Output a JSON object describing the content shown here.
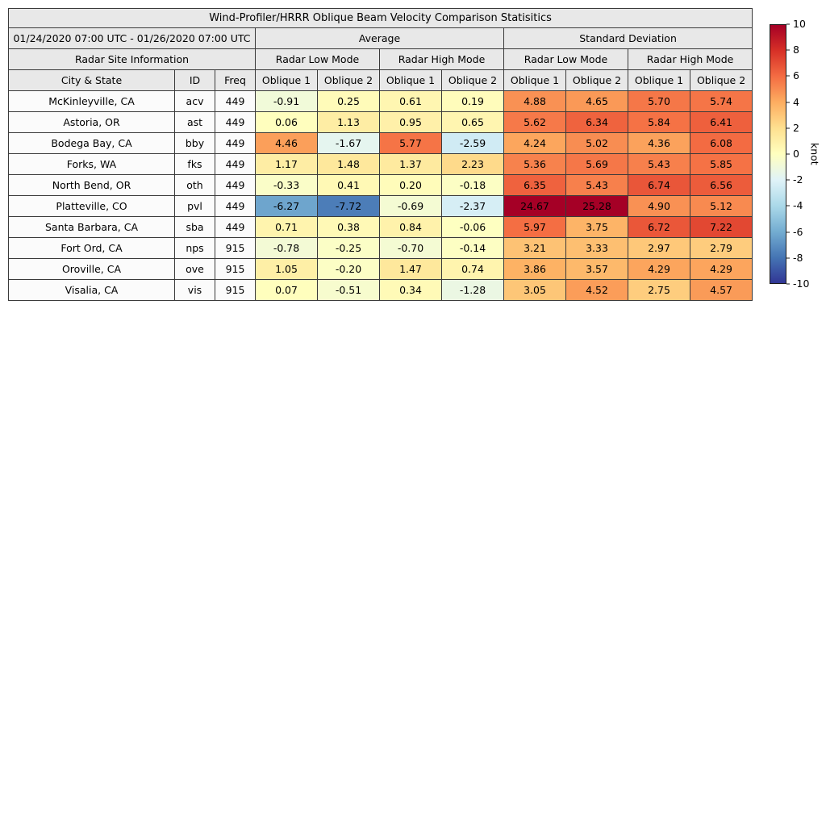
{
  "table": {
    "title": "Wind-Profiler/HRRR Oblique Beam Velocity Comparison Statisitics",
    "date_range": "01/24/2020 07:00 UTC - 01/26/2020 07:00 UTC",
    "group_headers": {
      "average": "Average",
      "std": "Standard Deviation",
      "site_info": "Radar Site Information"
    },
    "mode_headers": [
      "Radar Low Mode",
      "Radar High Mode",
      "Radar Low Mode",
      "Radar High Mode"
    ],
    "column_headers": [
      "City & State",
      "ID",
      "Freq",
      "Oblique 1",
      "Oblique 2",
      "Oblique 1",
      "Oblique 2",
      "Oblique 1",
      "Oblique 2",
      "Oblique 1",
      "Oblique 2"
    ]
  },
  "colorbar": {
    "min": -10,
    "max": 10,
    "ticks": [
      10,
      8,
      6,
      4,
      2,
      0,
      -2,
      -4,
      -6,
      -8,
      -10
    ],
    "unit": "knot",
    "colors": [
      "#313695",
      "#4575b4",
      "#74add1",
      "#abd9e9",
      "#e0f3f8",
      "#ffffbf",
      "#fee090",
      "#fdae61",
      "#f46d43",
      "#d73027",
      "#a50026"
    ]
  },
  "chart_data": {
    "type": "table",
    "title": "Wind-Profiler/HRRR Oblique Beam Velocity Comparison Statisitics",
    "subtitle": "01/24/2020 07:00 UTC - 01/26/2020 07:00 UTC",
    "value_columns": [
      "Average Radar Low Mode Oblique 1",
      "Average Radar Low Mode Oblique 2",
      "Average Radar High Mode Oblique 1",
      "Average Radar High Mode Oblique 2",
      "Standard Deviation Radar Low Mode Oblique 1",
      "Standard Deviation Radar Low Mode Oblique 2",
      "Standard Deviation Radar High Mode Oblique 1",
      "Standard Deviation Radar High Mode Oblique 2"
    ],
    "color_scale": {
      "type": "diverging",
      "range": [
        -10,
        10
      ],
      "unit": "knot"
    },
    "rows": [
      {
        "city": "McKinleyville, CA",
        "id": "acv",
        "freq": "449",
        "values": [
          -0.91,
          0.25,
          0.61,
          0.19,
          4.88,
          4.65,
          5.7,
          5.74
        ]
      },
      {
        "city": "Astoria, OR",
        "id": "ast",
        "freq": "449",
        "values": [
          0.06,
          1.13,
          0.95,
          0.65,
          5.62,
          6.34,
          5.84,
          6.41
        ]
      },
      {
        "city": "Bodega Bay, CA",
        "id": "bby",
        "freq": "449",
        "values": [
          4.46,
          -1.67,
          5.77,
          -2.59,
          4.24,
          5.02,
          4.36,
          6.08
        ]
      },
      {
        "city": "Forks, WA",
        "id": "fks",
        "freq": "449",
        "values": [
          1.17,
          1.48,
          1.37,
          2.23,
          5.36,
          5.69,
          5.43,
          5.85
        ]
      },
      {
        "city": "North Bend, OR",
        "id": "oth",
        "freq": "449",
        "values": [
          -0.33,
          0.41,
          0.2,
          -0.18,
          6.35,
          5.43,
          6.74,
          6.56
        ]
      },
      {
        "city": "Platteville, CO",
        "id": "pvl",
        "freq": "449",
        "values": [
          -6.27,
          -7.72,
          -0.69,
          -2.37,
          24.67,
          25.28,
          4.9,
          5.12
        ]
      },
      {
        "city": "Santa Barbara, CA",
        "id": "sba",
        "freq": "449",
        "values": [
          0.71,
          0.38,
          0.84,
          -0.06,
          5.97,
          3.75,
          6.72,
          7.22
        ]
      },
      {
        "city": "Fort Ord, CA",
        "id": "nps",
        "freq": "915",
        "values": [
          -0.78,
          -0.25,
          -0.7,
          -0.14,
          3.21,
          3.33,
          2.97,
          2.79
        ]
      },
      {
        "city": "Oroville, CA",
        "id": "ove",
        "freq": "915",
        "values": [
          1.05,
          -0.2,
          1.47,
          0.74,
          3.86,
          3.57,
          4.29,
          4.29
        ]
      },
      {
        "city": "Visalia, CA",
        "id": "vis",
        "freq": "915",
        "values": [
          0.07,
          -0.51,
          0.34,
          -1.28,
          3.05,
          4.52,
          2.75,
          4.57
        ]
      }
    ]
  }
}
